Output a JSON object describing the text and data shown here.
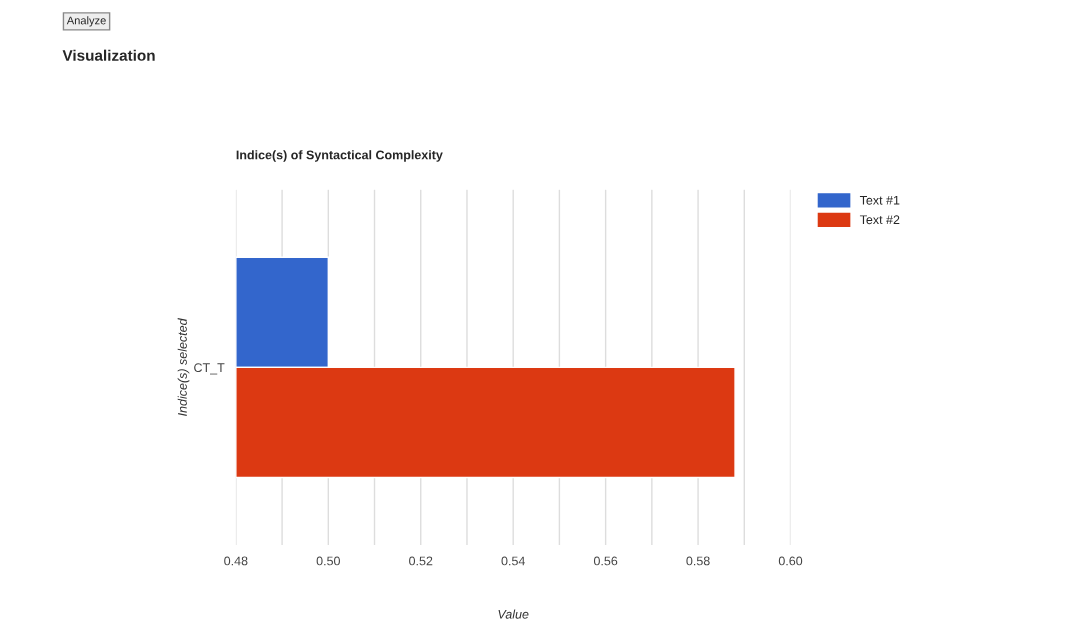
{
  "chart_data": {
    "type": "bar",
    "orientation": "horizontal",
    "title": "Indice(s) of Syntactical Complexity",
    "annotations": [
      "Analyze",
      "Visualization"
    ],
    "xlabel": "Value",
    "ylabel": "Indice(s) selected",
    "categories": [
      "CT_T"
    ],
    "series": [
      {
        "name": "Text #1",
        "color": "#3366cc",
        "values": [
          0.5
        ]
      },
      {
        "name": "Text #2",
        "color": "#dc3912",
        "values": [
          0.588
        ]
      }
    ],
    "xlim": [
      0.48,
      0.6
    ],
    "xticks": [
      "0.48",
      {
        "value": 0.49,
        "label": null
      },
      {
        "value": 0.5,
        "label": "0.50"
      },
      {
        "value": 0.51,
        "label": null
      },
      {
        "value": 0.52,
        "label": "0.52"
      },
      {
        "value": 0.53,
        "label": null
      },
      {
        "value": 0.54,
        "label": "0.54"
      },
      {
        "value": 0.55,
        "label": null
      },
      {
        "value": 0.56,
        "label": "0.56"
      },
      {
        "value": 0.57,
        "label": null
      },
      {
        "value": 0.58,
        "label": "0.58"
      },
      {
        "value": 0.59,
        "label": null
      },
      {
        "value": 0.6,
        "label": "0.60"
      }
    ],
    "grid": "x",
    "legend": "top right"
  }
}
